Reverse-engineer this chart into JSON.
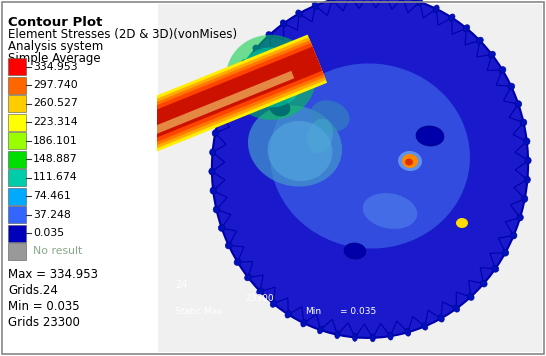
{
  "title_lines": [
    "Contour Plot",
    "Element Stresses (2D & 3D)(vonMises)",
    "Analysis system",
    "Simple Average"
  ],
  "legend_values": [
    334.953,
    297.74,
    260.527,
    223.314,
    186.101,
    148.887,
    111.674,
    74.461,
    37.248,
    0.035
  ],
  "legend_colors": [
    "#ff0000",
    "#ff6600",
    "#ffcc00",
    "#ffff00",
    "#99ff00",
    "#00dd00",
    "#00ccaa",
    "#00aaff",
    "#3366ff",
    "#0000bb"
  ],
  "no_result_color": "#999999",
  "no_result_text": "No result",
  "max_text": "Max = 334.953",
  "grids_max_text": "Grids.24",
  "min_text": "Min = 0.035",
  "grids_min_text": "Grids 23300",
  "bg_color": "#ffffff",
  "border_color": "#aaaaaa",
  "text_color": "#000000",
  "gear_bg": "#0000aa",
  "gear_body": "#1111cc",
  "gear_tooth": "#0000aa",
  "shaft_colors": [
    "#cc0000",
    "#ff3300",
    "#ff6600",
    "#ff9900",
    "#ffcc00"
  ],
  "hub_light": "#5599ff",
  "hub_cyan": "#44bbcc",
  "hub_cyan2": "#33aacc",
  "orange_spot": "#ff8800",
  "red_spot": "#cc2200"
}
